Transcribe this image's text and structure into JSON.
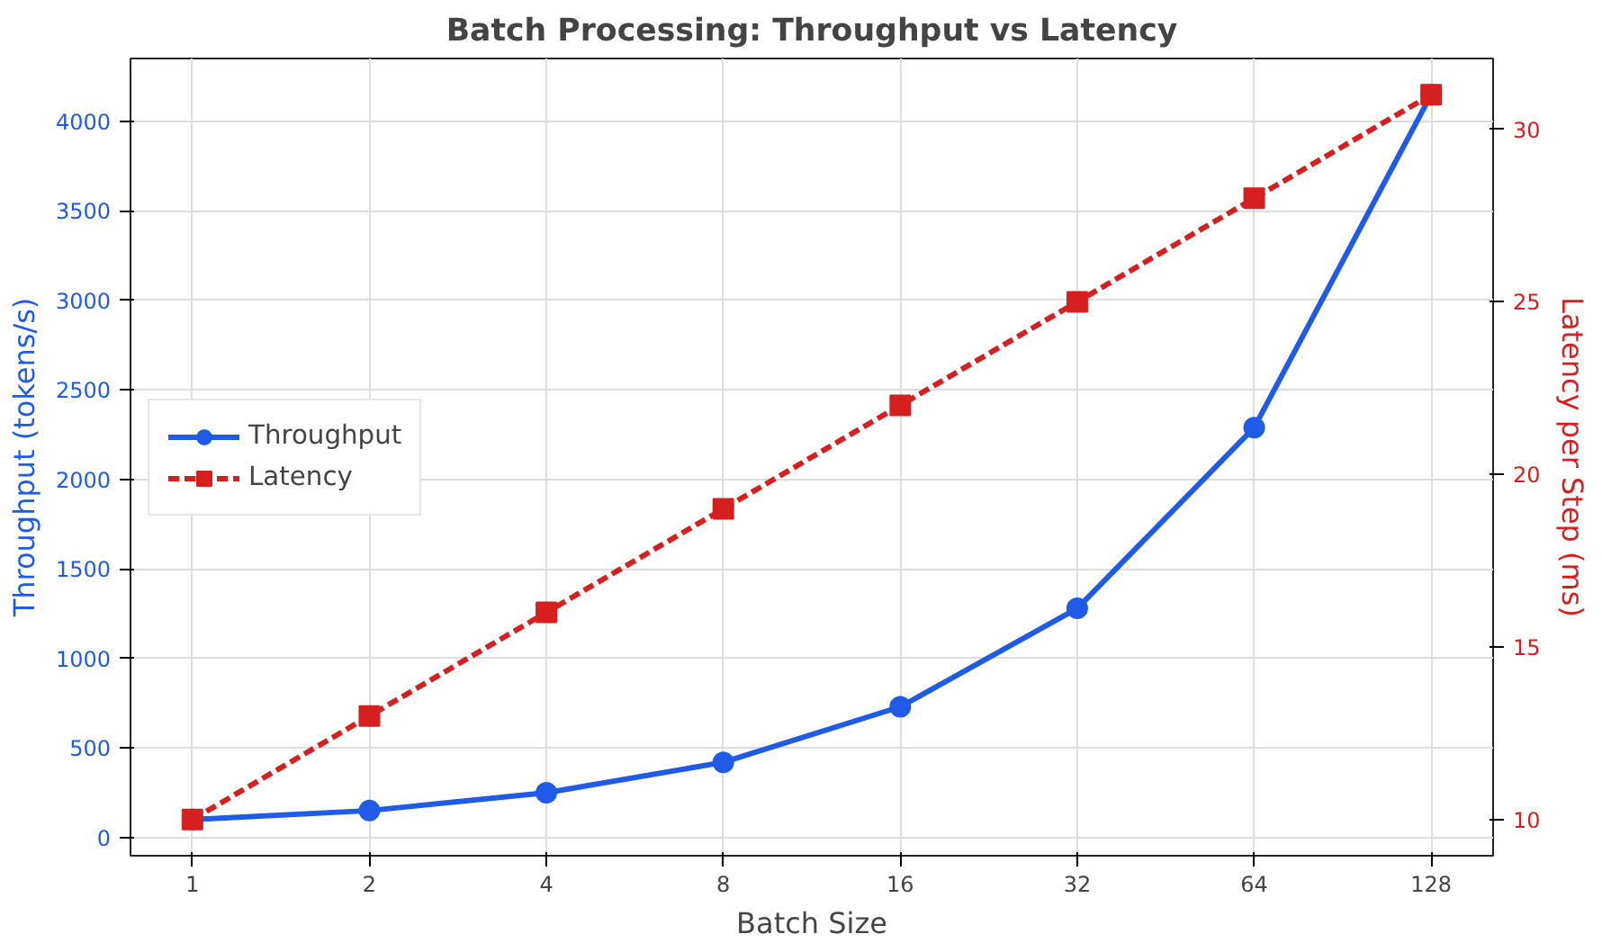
{
  "chart_data": {
    "type": "line",
    "title": "Batch Processing: Throughput vs Latency",
    "xlabel": "Batch Size",
    "ylabel": "Throughput (tokens/s)",
    "y2label": "Latency per Step (ms)",
    "categories": [
      "1",
      "2",
      "4",
      "8",
      "16",
      "32",
      "64",
      "128"
    ],
    "series": [
      {
        "name": "Throughput",
        "color": "#1f5be6",
        "values": [
          100,
          150,
          250,
          420,
          730,
          1280,
          2290,
          4150
        ],
        "marker": "circle",
        "line_style": "solid"
      },
      {
        "name": "Latency",
        "color": "#d62020",
        "values": [
          10,
          13,
          16,
          19,
          22,
          25,
          28,
          31
        ],
        "axis": "y2",
        "marker": "square",
        "line_style": "dashed"
      }
    ],
    "ylim": [
      -102,
      4352
    ],
    "yticks": [
      0,
      500,
      1000,
      1500,
      2000,
      2500,
      3000,
      3500,
      4000
    ],
    "y2lim": [
      8.95,
      32.05
    ],
    "y2ticks": [
      10,
      15,
      20,
      25,
      30
    ],
    "grid": true,
    "legend": "center left"
  }
}
